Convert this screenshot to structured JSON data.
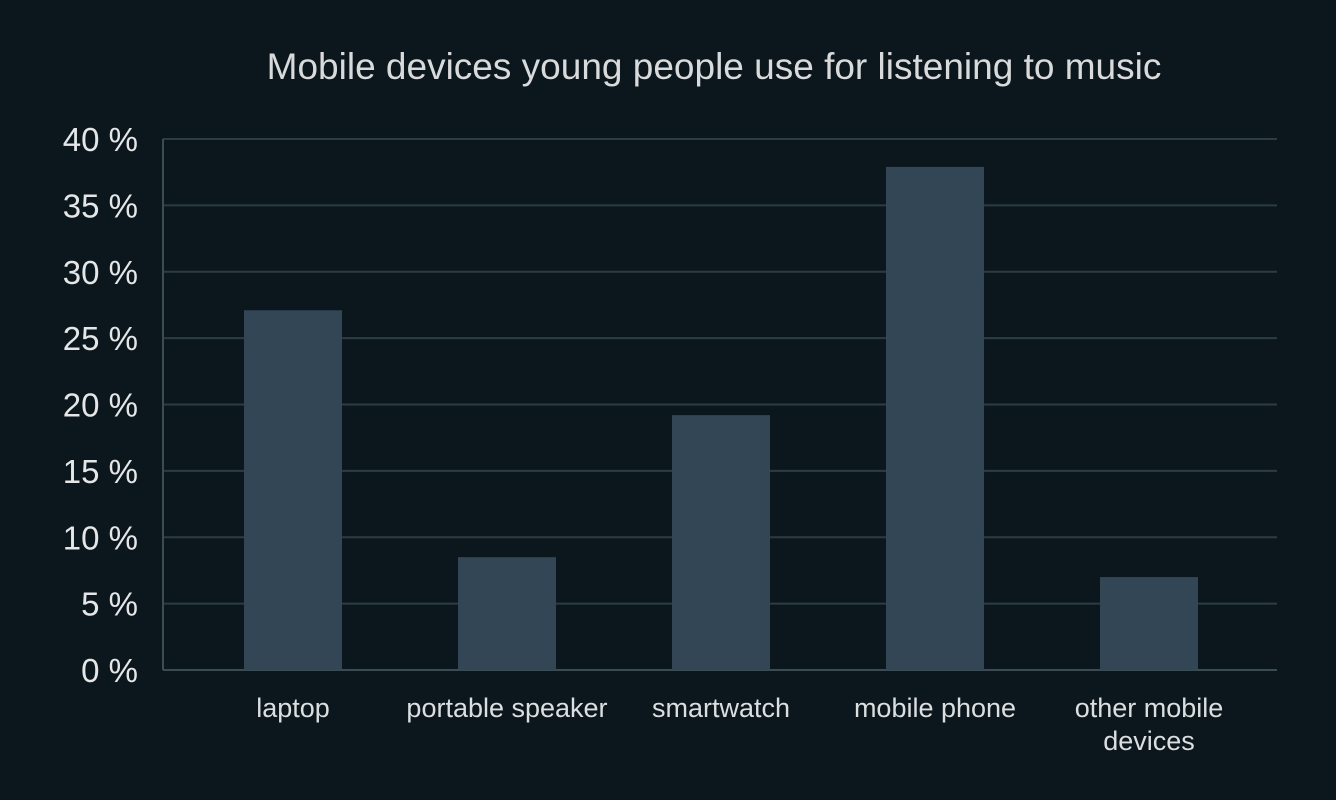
{
  "chart_data": {
    "type": "bar",
    "title": "Mobile devices young people use for listening to music",
    "xlabel": "",
    "ylabel": "",
    "categories": [
      "laptop",
      "portable speaker",
      "smartwatch",
      "mobile phone",
      "other mobile devices"
    ],
    "values": [
      27.1,
      8.5,
      19.2,
      37.9,
      7.0
    ],
    "ylim": [
      0,
      40
    ],
    "y_ticks": [
      0,
      5,
      10,
      15,
      20,
      25,
      30,
      35,
      40
    ],
    "y_tick_labels": [
      "0 %",
      "5 %",
      "10 %",
      "15 %",
      "20 %",
      "25 %",
      "30 %",
      "35 %",
      "40 %"
    ],
    "grid": true,
    "legend": "none",
    "colors": {
      "background": "#0c171d",
      "bar": "#324656",
      "grid": "#2c3c45",
      "axis": "#3c4c55",
      "text": "#e4e6e7"
    }
  }
}
